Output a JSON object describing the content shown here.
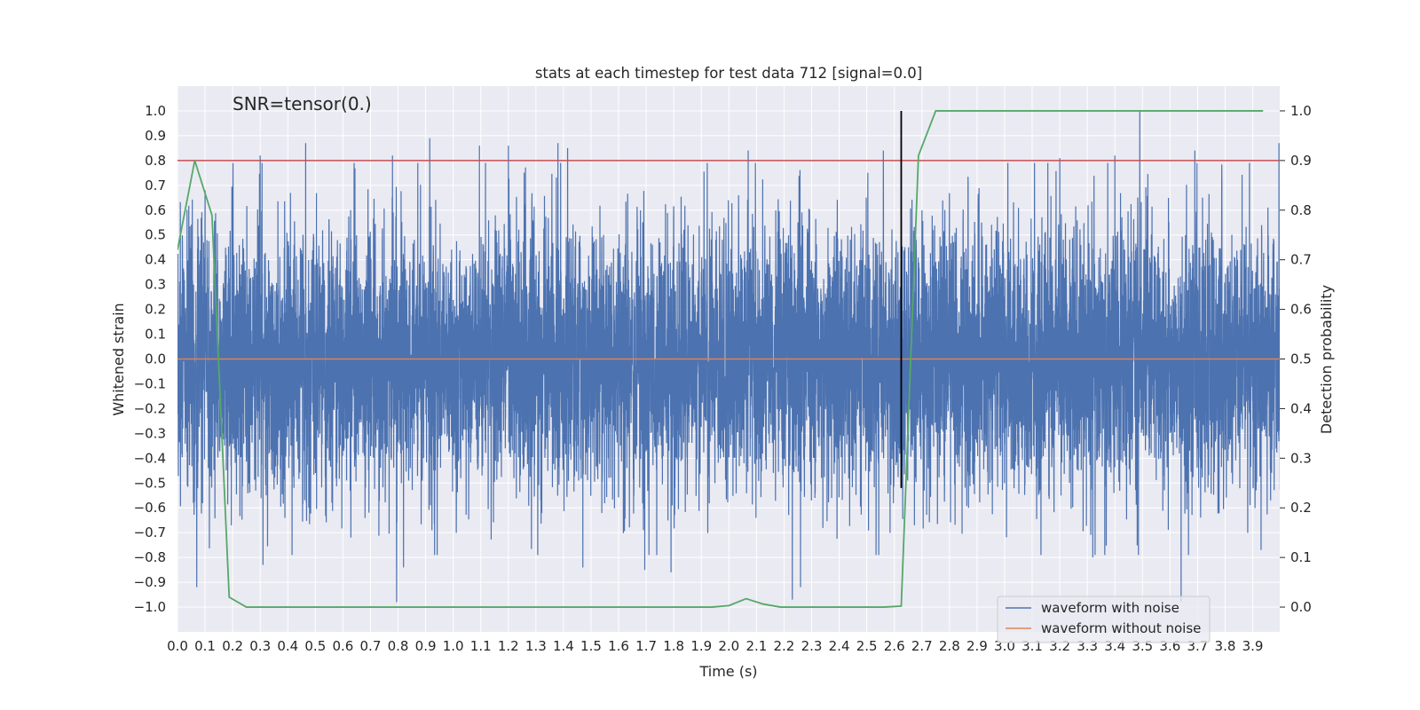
{
  "chart_data": {
    "type": "line",
    "title": "stats at each timestep for test data 712 [signal=0.0]",
    "xlabel": "Time (s)",
    "ylabel": "Whitened strain",
    "y2label": "Detection probability",
    "annotation": "SNR=tensor(0.)",
    "xlim": [
      0.0,
      3.998
    ],
    "ylim": [
      -1.1,
      1.1
    ],
    "y2lim": [
      -0.05,
      1.05
    ],
    "x_ticks": [
      "0.0",
      "0.1",
      "0.2",
      "0.3",
      "0.4",
      "0.5",
      "0.6",
      "0.7",
      "0.8",
      "0.9",
      "1.0",
      "1.1",
      "1.2",
      "1.3",
      "1.4",
      "1.5",
      "1.6",
      "1.7",
      "1.8",
      "1.9",
      "2.0",
      "2.1",
      "2.2",
      "2.3",
      "2.4",
      "2.5",
      "2.6",
      "2.7",
      "2.8",
      "2.9",
      "3.0",
      "3.1",
      "3.2",
      "3.3",
      "3.4",
      "3.5",
      "3.6",
      "3.7",
      "3.8",
      "3.9"
    ],
    "y_ticks": [
      "1.0",
      "0.9",
      "0.8",
      "0.7",
      "0.6",
      "0.5",
      "0.4",
      "0.3",
      "0.2",
      "0.1",
      "0.0",
      "−0.1",
      "−0.2",
      "−0.3",
      "−0.4",
      "−0.5",
      "−0.6",
      "−0.7",
      "−0.8",
      "−0.9",
      "−1.0"
    ],
    "y2_ticks": [
      "1.0",
      "0.9",
      "0.8",
      "0.7",
      "0.6",
      "0.5",
      "0.4",
      "0.3",
      "0.2",
      "0.1",
      "0.0"
    ],
    "grid": true,
    "legend_position": "lower-right",
    "threshold": 0.8,
    "marker_time": 2.625,
    "series": [
      {
        "name": "waveform with noise",
        "color": "#4c72b0",
        "axis": "left",
        "sample_rate": 2048,
        "duration": 4.0,
        "approx_std": 0.27,
        "peaks": [
          {
            "x": 0.07,
            "y": -0.92
          },
          {
            "x": 0.1,
            "y": 0.68
          },
          {
            "x": 0.3,
            "y": 0.82
          },
          {
            "x": 0.31,
            "y": -0.83
          },
          {
            "x": 0.465,
            "y": 0.87
          },
          {
            "x": 0.78,
            "y": 0.82
          },
          {
            "x": 0.795,
            "y": -0.98
          },
          {
            "x": 0.915,
            "y": 0.89
          },
          {
            "x": 0.82,
            "y": -0.84
          },
          {
            "x": 1.095,
            "y": 0.86
          },
          {
            "x": 1.2,
            "y": 0.86
          },
          {
            "x": 1.38,
            "y": 0.87
          },
          {
            "x": 1.415,
            "y": 0.85
          },
          {
            "x": 1.47,
            "y": -0.84
          },
          {
            "x": 1.695,
            "y": -0.85
          },
          {
            "x": 1.79,
            "y": -0.86
          },
          {
            "x": 2.07,
            "y": 0.84
          },
          {
            "x": 2.23,
            "y": -0.97
          },
          {
            "x": 2.26,
            "y": -0.92
          },
          {
            "x": 2.56,
            "y": 0.84
          },
          {
            "x": 3.4,
            "y": 0.82
          },
          {
            "x": 3.49,
            "y": 1.0
          },
          {
            "x": 3.64,
            "y": -0.98
          },
          {
            "x": 3.69,
            "y": 0.84
          },
          {
            "x": 3.2,
            "y": 0.81
          },
          {
            "x": 3.32,
            "y": -0.8
          },
          {
            "x": 3.93,
            "y": -0.77
          },
          {
            "x": 3.995,
            "y": 0.87
          }
        ]
      },
      {
        "name": "waveform without noise",
        "color": "#dd8452",
        "axis": "left",
        "x": [
          0.0,
          3.998
        ],
        "y": [
          0.0,
          0.0
        ]
      },
      {
        "name": "detection probability",
        "color": "#55a868",
        "axis": "right",
        "x": [
          0.0,
          0.0625,
          0.125,
          0.1875,
          0.25,
          0.3125,
          0.375,
          0.4375,
          0.5,
          0.5625,
          0.625,
          0.6875,
          0.75,
          0.8125,
          0.875,
          0.9375,
          1.0,
          1.0625,
          1.125,
          1.1875,
          1.25,
          1.3125,
          1.375,
          1.4375,
          1.5,
          1.5625,
          1.625,
          1.6875,
          1.75,
          1.8125,
          1.875,
          1.9375,
          2.0,
          2.0625,
          2.125,
          2.1875,
          2.25,
          2.3125,
          2.375,
          2.4375,
          2.5,
          2.5625,
          2.625,
          2.6875,
          2.75,
          2.8125,
          2.875,
          2.9375,
          3.0,
          3.0625,
          3.125,
          3.1875,
          3.25,
          3.3125,
          3.375,
          3.4375,
          3.5,
          3.5625,
          3.625,
          3.6875,
          3.75,
          3.8125,
          3.875,
          3.9375
        ],
        "y": [
          0.72,
          0.9,
          0.79,
          0.02,
          0.0,
          0.0,
          0.0,
          0.0,
          0.0,
          0.0,
          0.0,
          0.0,
          0.0,
          0.0,
          0.0,
          0.0,
          0.0,
          0.0,
          0.0,
          0.0,
          0.0,
          0.0,
          0.0,
          0.0,
          0.0,
          0.0,
          0.0,
          0.0,
          0.0,
          0.0,
          0.0,
          0.0,
          0.003,
          0.017,
          0.006,
          0.0,
          0.0,
          0.0,
          0.0,
          0.0,
          0.0,
          0.0,
          0.002,
          0.91,
          1.0,
          1.0,
          1.0,
          1.0,
          1.0,
          1.0,
          1.0,
          1.0,
          1.0,
          1.0,
          1.0,
          1.0,
          1.0,
          1.0,
          1.0,
          1.0,
          1.0,
          1.0,
          1.0,
          1.0
        ]
      }
    ],
    "colors": {
      "plot_bg": "#eaeaf2",
      "grid": "#ffffff",
      "threshold_line": "#c44e52",
      "marker_line": "#000000",
      "text": "#262626"
    }
  }
}
